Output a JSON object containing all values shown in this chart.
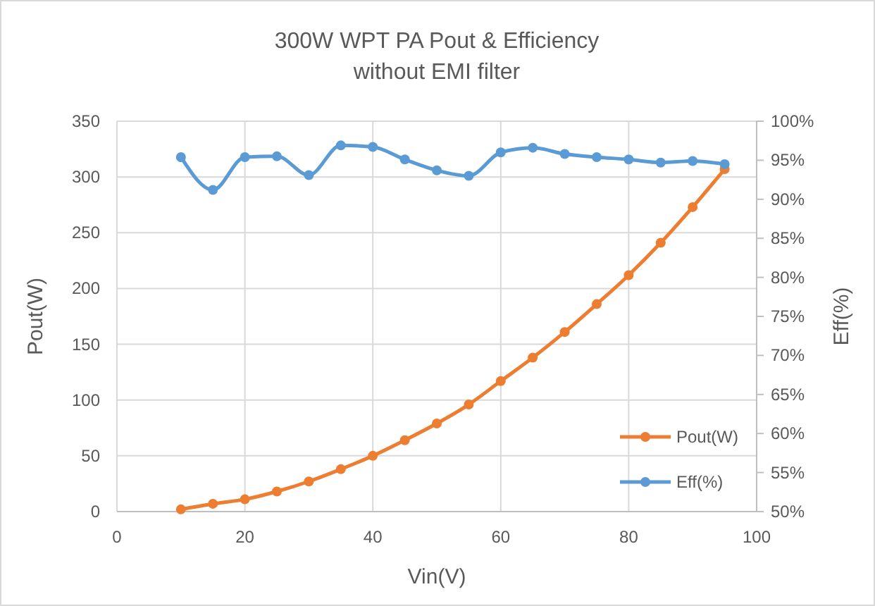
{
  "chart_data": {
    "type": "line",
    "title": "300W WPT PA Pout & Efficiency\nwithout EMI filter",
    "xlabel": "Vin(V)",
    "ylabel": "Pout(W)",
    "y2label": "Eff(%)",
    "x": [
      10,
      15,
      20,
      25,
      30,
      35,
      40,
      45,
      50,
      55,
      60,
      65,
      70,
      75,
      80,
      85,
      90,
      95
    ],
    "series": [
      {
        "name": "Pout(W)",
        "color": "#ed7d31",
        "values": [
          2,
          7,
          11,
          18,
          27,
          38,
          50,
          64,
          79,
          96,
          117,
          138,
          161,
          186,
          212,
          241,
          273,
          307
        ]
      },
      {
        "name": "Eff(%)",
        "color": "#5b9bd5",
        "axis": "y2",
        "values": [
          95.4,
          91.2,
          95.4,
          95.5,
          93.1,
          96.9,
          96.7,
          95.1,
          93.7,
          93.0,
          96.0,
          96.6,
          95.8,
          95.4,
          95.1,
          94.7,
          94.9,
          94.5
        ]
      }
    ],
    "xlim": [
      0,
      100
    ],
    "xticks": [
      0,
      20,
      40,
      60,
      80,
      100
    ],
    "ylim": [
      0,
      350
    ],
    "yticks": [
      0,
      50,
      100,
      150,
      200,
      250,
      300,
      350
    ],
    "y2lim": [
      50,
      100
    ],
    "y2ticks": [
      {
        "value": 50,
        "label": "50%"
      },
      {
        "value": 55,
        "label": "55%"
      },
      {
        "value": 60,
        "label": "60%"
      },
      {
        "value": 65,
        "label": "65%"
      },
      {
        "value": 70,
        "label": "70%"
      },
      {
        "value": 75,
        "label": "75%"
      },
      {
        "value": 80,
        "label": "80%"
      },
      {
        "value": 85,
        "label": "85%"
      },
      {
        "value": 90,
        "label": "90%"
      },
      {
        "value": 95,
        "label": "95%"
      },
      {
        "value": 100,
        "label": "100%"
      }
    ],
    "grid": true,
    "legend": "bottom right",
    "marker": "circle",
    "line_style": "solid"
  }
}
